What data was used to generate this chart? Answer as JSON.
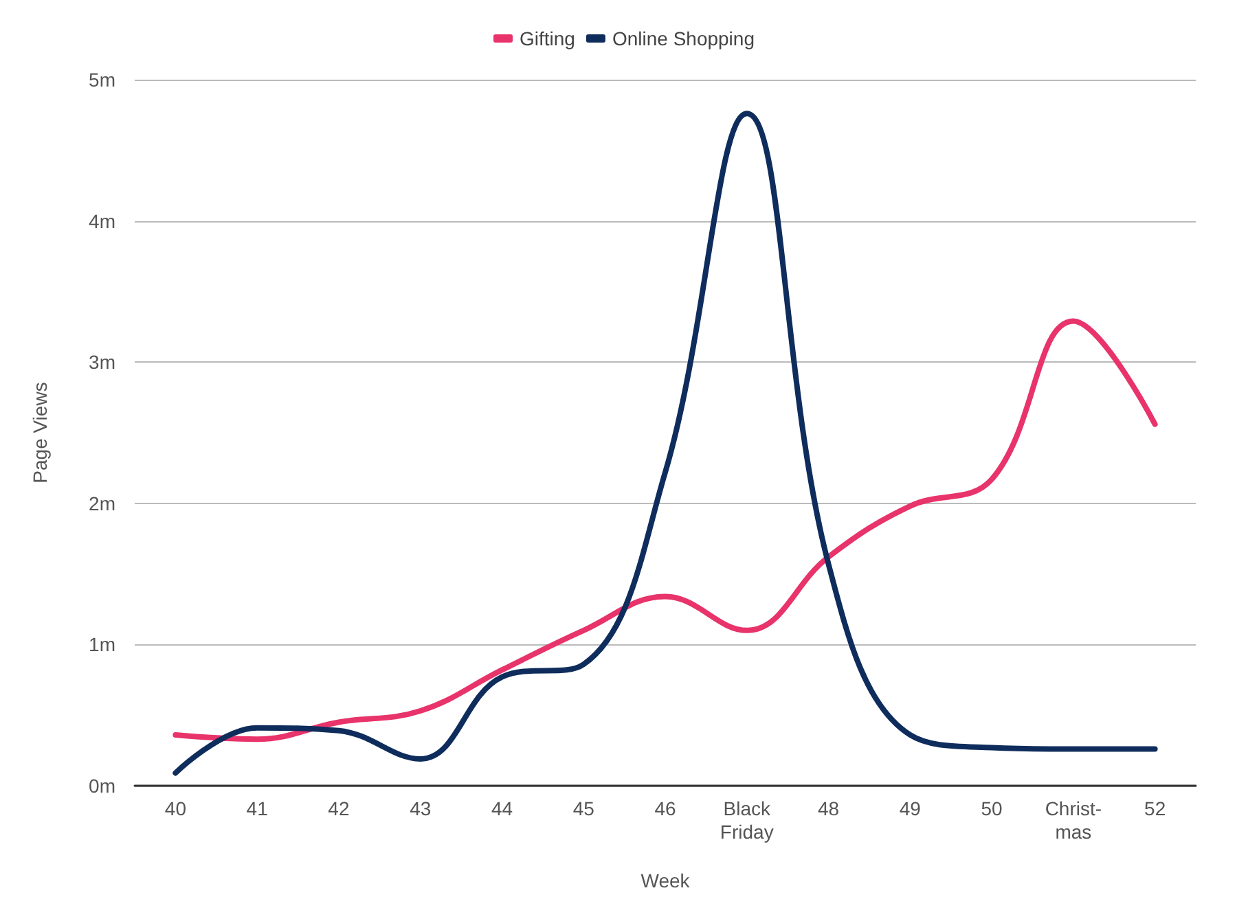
{
  "chart_data": {
    "type": "line",
    "xlabel": "Week",
    "ylabel": "Page Views",
    "categories": [
      "40",
      "41",
      "42",
      "43",
      "44",
      "45",
      "46",
      "Black\nFriday",
      "48",
      "49",
      "50",
      "Christ-\nmas",
      "52"
    ],
    "series": [
      {
        "name": "Gifting",
        "color": "#e8336b",
        "values": [
          0.36,
          0.33,
          0.45,
          0.53,
          0.82,
          1.1,
          1.34,
          1.1,
          1.62,
          1.98,
          2.17,
          3.29,
          2.56
        ]
      },
      {
        "name": "Online Shopping",
        "color": "#0f2d5c",
        "values": [
          0.09,
          0.41,
          0.39,
          0.19,
          0.77,
          0.86,
          2.22,
          4.76,
          1.57,
          0.36,
          0.27,
          0.26,
          0.26
        ]
      }
    ],
    "ylim": [
      0,
      5
    ],
    "yticks": [
      {
        "value": 0,
        "label": "0m"
      },
      {
        "value": 1,
        "label": "1m"
      },
      {
        "value": 2,
        "label": "2m"
      },
      {
        "value": 3,
        "label": "3m"
      },
      {
        "value": 4,
        "label": "4m"
      },
      {
        "value": 5,
        "label": "5m"
      }
    ],
    "grid": "y",
    "legend": "top",
    "marker": "none",
    "line_style": "solid"
  }
}
